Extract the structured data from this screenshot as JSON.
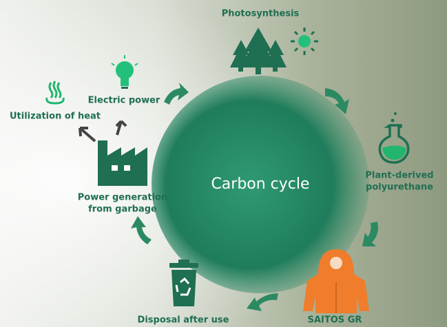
{
  "center": {
    "label": "Carbon cycle"
  },
  "nodes": [
    {
      "label": [
        "Photosynthesis"
      ]
    },
    {
      "label": [
        "Plant-derived",
        "polyurethane"
      ]
    },
    {
      "label": [
        "SAITOS  GR"
      ]
    },
    {
      "label": [
        "Disposal after use"
      ]
    },
    {
      "label": [
        "Power generation",
        "from garbage"
      ]
    },
    {
      "label": [
        "Utilization of heat"
      ]
    },
    {
      "label": [
        "Electric power"
      ]
    }
  ]
}
